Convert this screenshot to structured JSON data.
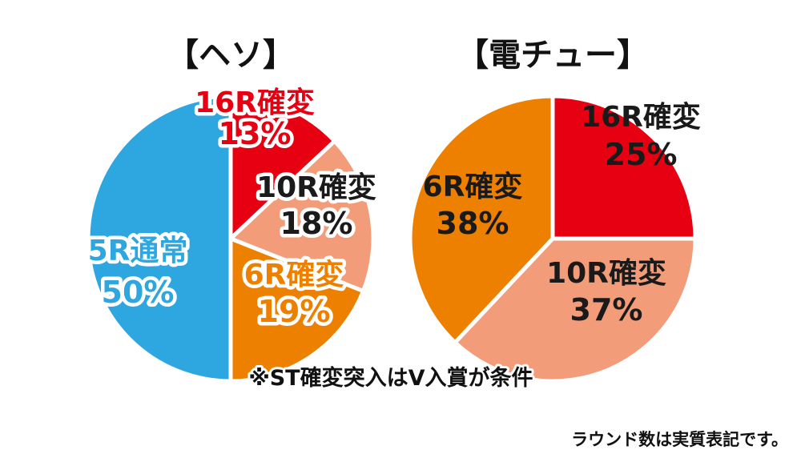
{
  "chart_data": [
    {
      "type": "pie",
      "title": "【ヘソ】",
      "slices": [
        {
          "label": "16R確変",
          "value": 13,
          "value_text": "13%",
          "color": "#e60012",
          "text_color": "#e60012",
          "label_style": "outlined"
        },
        {
          "label": "10R確変",
          "value": 18,
          "value_text": "18%",
          "color": "#f29c7a",
          "text_color": "#1a1a1a",
          "label_style": "outlined"
        },
        {
          "label": "6R確変",
          "value": 19,
          "value_text": "19%",
          "color": "#ee8000",
          "text_color": "#ee8000",
          "label_style": "outlined"
        },
        {
          "label": "5R通常",
          "value": 50,
          "value_text": "50%",
          "color": "#2ea6e0",
          "text_color": "#2ea6e0",
          "label_style": "outlined"
        }
      ]
    },
    {
      "type": "pie",
      "title": "【電チュー】",
      "slices": [
        {
          "label": "16R確変",
          "value": 25,
          "value_text": "25%",
          "color": "#e60012",
          "text_color": "#ffffff",
          "label_style": "plain"
        },
        {
          "label": "10R確変",
          "value": 37,
          "value_text": "37%",
          "color": "#f29c7a",
          "text_color": "#1a1a1a",
          "label_style": "plain"
        },
        {
          "label": "6R確変",
          "value": 38,
          "value_text": "38%",
          "color": "#ee8000",
          "text_color": "#ffffff",
          "label_style": "plain"
        }
      ]
    }
  ],
  "note": "※ST確変突入はV入賞が条件",
  "footnote": "ラウンド数は実質表記です。"
}
